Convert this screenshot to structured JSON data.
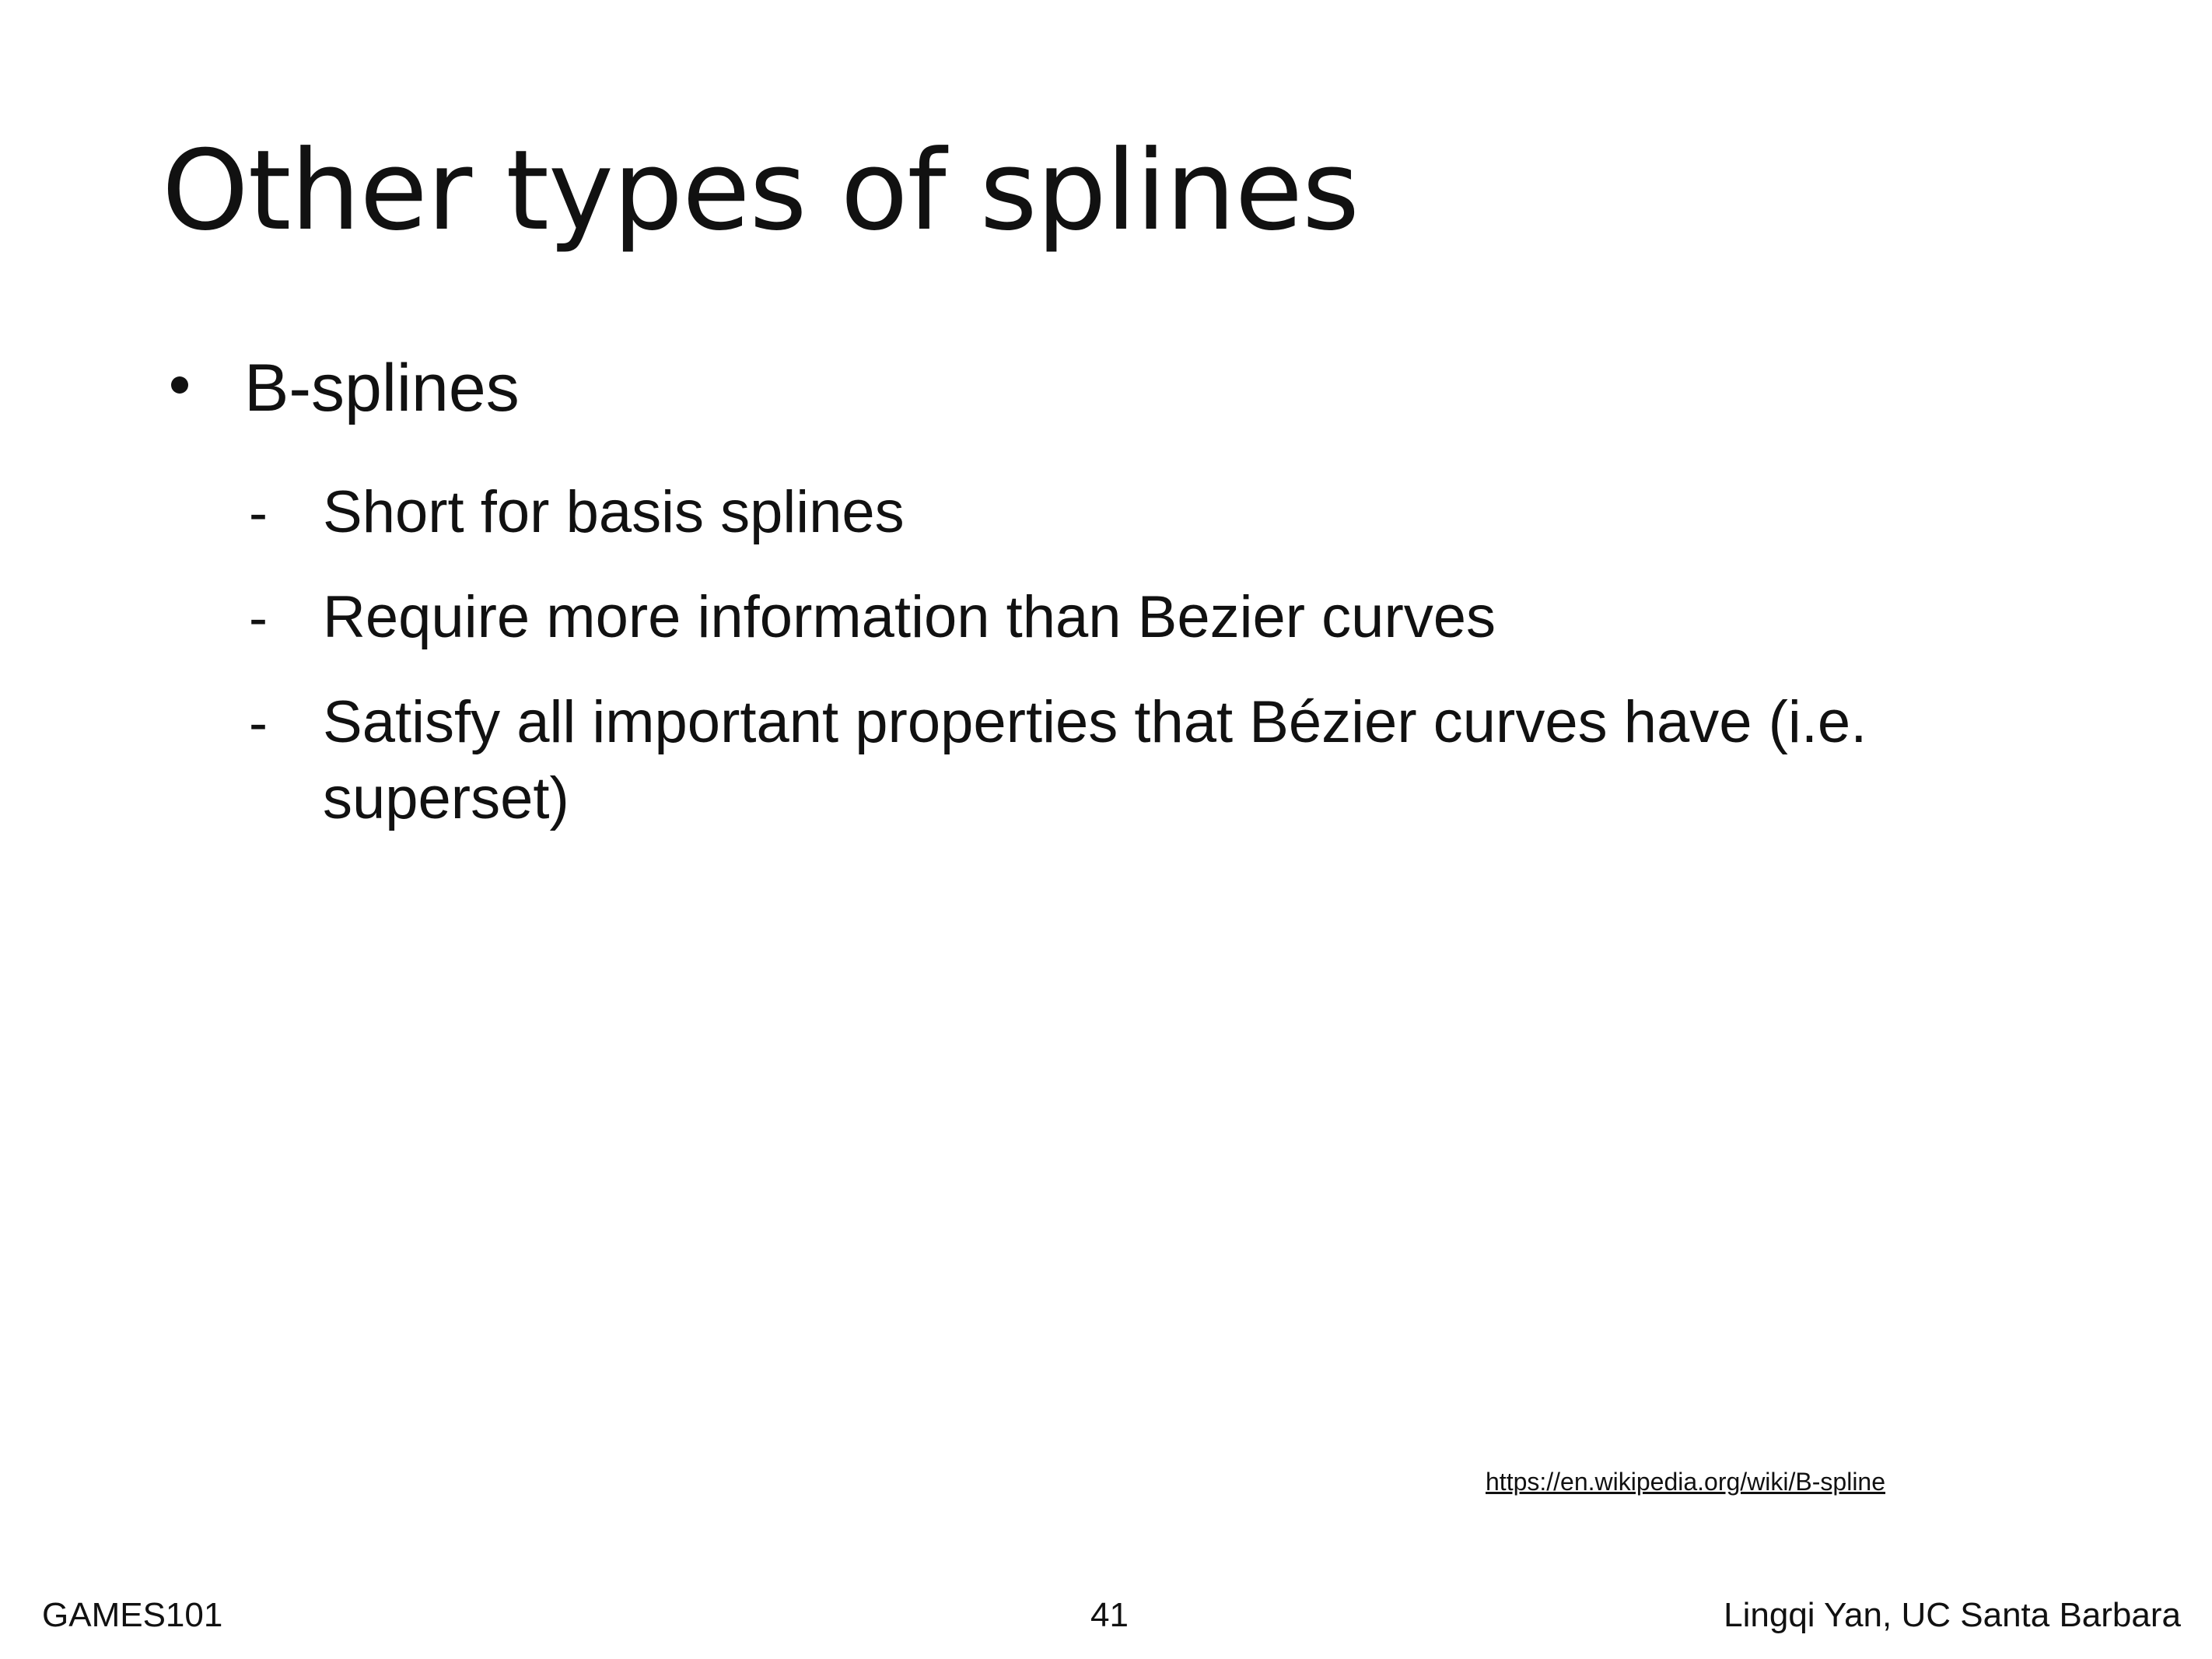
{
  "slide": {
    "title": "Other types of splines",
    "bullet": {
      "label": "B-splines",
      "sub_items": [
        {
          "dash": "-",
          "text": "Short for basis splines"
        },
        {
          "dash": "-",
          "text": "Require more information than Bezier curves"
        },
        {
          "dash": "-",
          "text": "Satisfy all important properties that Bézier curves have (i.e. superset)"
        }
      ]
    },
    "reference_link": "https://en.wikipedia.org/wiki/B-spline",
    "footer": {
      "course": "GAMES101",
      "page_number": "41",
      "author": "Lingqi Yan, UC Santa Barbara"
    }
  },
  "colors": {
    "background": "#ffffff",
    "text": "#111111"
  }
}
